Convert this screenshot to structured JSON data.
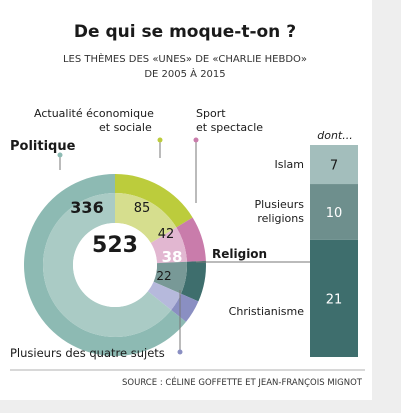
{
  "header": {
    "title": "De qui se moque-t-on ?",
    "subtitle_line1": "LES THÈMES DES «UNES» DE «CHARLIE HEBDO»",
    "subtitle_line2": "DE 2005 À 2015"
  },
  "source": "SOURCE : CÉLINE GOFFETTE ET JEAN-FRANÇOIS MIGNOT",
  "colors": {
    "background": "#eeeeee",
    "card": "#ffffff",
    "politique": "#8dbab3",
    "politique_inner": "#aacbc5",
    "economie": "#bccc3c",
    "economie_inner": "#d6de8e",
    "sport": "#c97cab",
    "sport_inner": "#e2b7d1",
    "religion": "#3e6e6d",
    "religion_inner": "#789997",
    "plusieurs": "#8a8fc2",
    "plusieurs_inner": "#b6b9dc",
    "islam": "#a3bebc",
    "plusieurs_religions": "#6e8f8d",
    "christianisme": "#3e6e6d",
    "text": "#1a1a1a",
    "leader": "#777777"
  },
  "chart_data": [
    {
      "type": "pie",
      "title": "De qui se moque-t-on ?",
      "subtitle": "LES THÈMES DES «UNES» DE «CHARLIE HEBDO» DE 2005 À 2015",
      "total": 523,
      "slices": [
        {
          "key": "politique",
          "label": "Politique",
          "value": 336
        },
        {
          "key": "economie",
          "label": "Actualité économique et sociale",
          "value": 85
        },
        {
          "key": "sport",
          "label": "Sport et spectacle",
          "value": 42
        },
        {
          "key": "religion",
          "label": "Religion",
          "value": 38
        },
        {
          "key": "plusieurs",
          "label": "Plusieurs des quatre sujets",
          "value": 22
        }
      ]
    },
    {
      "type": "bar",
      "title": "dont...",
      "categories": [
        "Islam",
        "Plusieurs religions",
        "Christianisme"
      ],
      "values": [
        7,
        10,
        21
      ],
      "stacked": true
    }
  ],
  "stack_labels": {
    "head": "dont...",
    "islam": "Islam",
    "plusieurs_l1": "Plusieurs",
    "plusieurs_l2": "religions",
    "christianisme": "Christianisme"
  },
  "pie_labels": {
    "politique": "Politique",
    "economie_l1": "Actualité économique",
    "economie_l2": "et sociale",
    "sport_l1": "Sport",
    "sport_l2": "et spectacle",
    "religion": "Religion",
    "plusieurs": "Plusieurs des quatre sujets"
  }
}
